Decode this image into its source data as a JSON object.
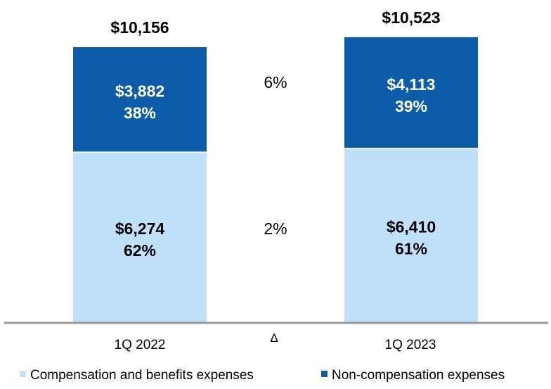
{
  "chart_data": {
    "type": "bar",
    "stacked": true,
    "categories": [
      "1Q 2022",
      "1Q 2023"
    ],
    "series": [
      {
        "name": "Compensation and benefits expenses",
        "values": [
          6274,
          6410
        ],
        "labels": [
          "$6,274",
          "$6,410"
        ],
        "pct_labels": [
          "62%",
          "61%"
        ],
        "color": "#bfe1fb"
      },
      {
        "name": "Non-compensation expenses",
        "values": [
          3882,
          4113
        ],
        "labels": [
          "$3,882",
          "$4,113"
        ],
        "pct_labels": [
          "38%",
          "39%"
        ],
        "color": "#0c5ca8"
      }
    ],
    "totals": [
      "$10,156",
      "$10,523"
    ],
    "delta_header": "Δ",
    "delta_labels": [
      "2%",
      "6%"
    ],
    "legend_position": "bottom",
    "grid": false,
    "axis_color": "#999999"
  }
}
